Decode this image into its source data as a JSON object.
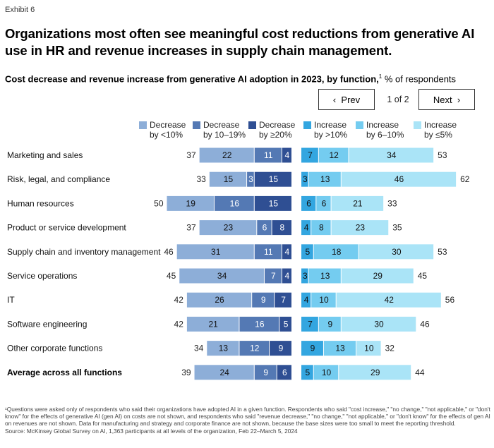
{
  "exhibit": "Exhibit 6",
  "title": "Organizations most often see meaningful cost reductions from generative AI use in HR and revenue increases in supply chain management.",
  "subtitle_bold": "Cost decrease and revenue increase from generative AI adoption in 2023, by function,",
  "subtitle_sup": "1",
  "subtitle_rest": " % of respondents",
  "nav": {
    "prev": "Prev",
    "pager": "1 of 2",
    "next": "Next"
  },
  "colors": {
    "dec1": "#8daed8",
    "dec2": "#5479b4",
    "dec3": "#2f4f93",
    "inc1": "#33a6e0",
    "inc2": "#74ccf0",
    "inc3": "#aae4f7",
    "text_dark": "#ffffff",
    "text_light": "#111111"
  },
  "chart_data": {
    "type": "bar",
    "orientation": "horizontal",
    "stacked": true,
    "diverging": true,
    "title": "Cost decrease and revenue increase from generative AI adoption in 2023, by function",
    "unit": "% of respondents",
    "categories": [
      "Marketing and sales",
      "Risk, legal, and compliance",
      "Human resources",
      "Product or service development",
      "Supply chain and inventory management",
      "Service operations",
      "IT",
      "Software engineering",
      "Other corporate functions",
      "Average across all functions"
    ],
    "decrease_series": [
      {
        "name": "Decrease by <10%",
        "legend_line1": "Decrease",
        "legend_line2": "by <10%",
        "values": [
          22,
          15,
          19,
          23,
          31,
          34,
          26,
          21,
          13,
          24
        ]
      },
      {
        "name": "Decrease by 10–19%",
        "legend_line1": "Decrease",
        "legend_line2": "by 10–19%",
        "values": [
          11,
          3,
          16,
          6,
          11,
          7,
          9,
          16,
          12,
          9
        ]
      },
      {
        "name": "Decrease by ≥20%",
        "legend_line1": "Decrease",
        "legend_line2": "by ≥20%",
        "values": [
          4,
          15,
          15,
          8,
          4,
          4,
          7,
          5,
          9,
          6
        ]
      }
    ],
    "increase_series": [
      {
        "name": "Increase by >10%",
        "legend_line1": "Increase",
        "legend_line2": "by >10%",
        "values": [
          7,
          3,
          6,
          4,
          5,
          3,
          4,
          7,
          9,
          5
        ]
      },
      {
        "name": "Increase by 6–10%",
        "legend_line1": "Increase",
        "legend_line2": "by 6–10%",
        "values": [
          12,
          13,
          6,
          8,
          18,
          13,
          10,
          9,
          13,
          10
        ]
      },
      {
        "name": "Increase by ≤5%",
        "legend_line1": "Increase",
        "legend_line2": "by ≤5%",
        "values": [
          34,
          46,
          21,
          23,
          30,
          29,
          42,
          30,
          10,
          29
        ]
      }
    ],
    "decrease_totals": [
      37,
      33,
      50,
      37,
      46,
      45,
      42,
      42,
      34,
      39
    ],
    "increase_totals": [
      53,
      62,
      33,
      35,
      53,
      45,
      56,
      46,
      32,
      44
    ]
  },
  "footnote": "¹Questions were asked only of respondents who said their organizations have adopted AI in a given function. Respondents who said \"cost increase,\" \"no change,\" \"not applicable,\" or \"don't know\" for the effects of generative AI (gen AI) on costs are not shown, and respondents who said \"revenue decrease,\" \"no change,\" \"not applicable,\" or \"don't know\" for the effects of gen AI on revenues are not shown. Data for manufacturing and strategy and corporate finance are not shown, because the base sizes were too small to meet the reporting threshold.",
  "source": "Source: McKinsey Global Survey on AI, 1,363 participants at all levels of the organization, Feb 22–March 5, 2024"
}
